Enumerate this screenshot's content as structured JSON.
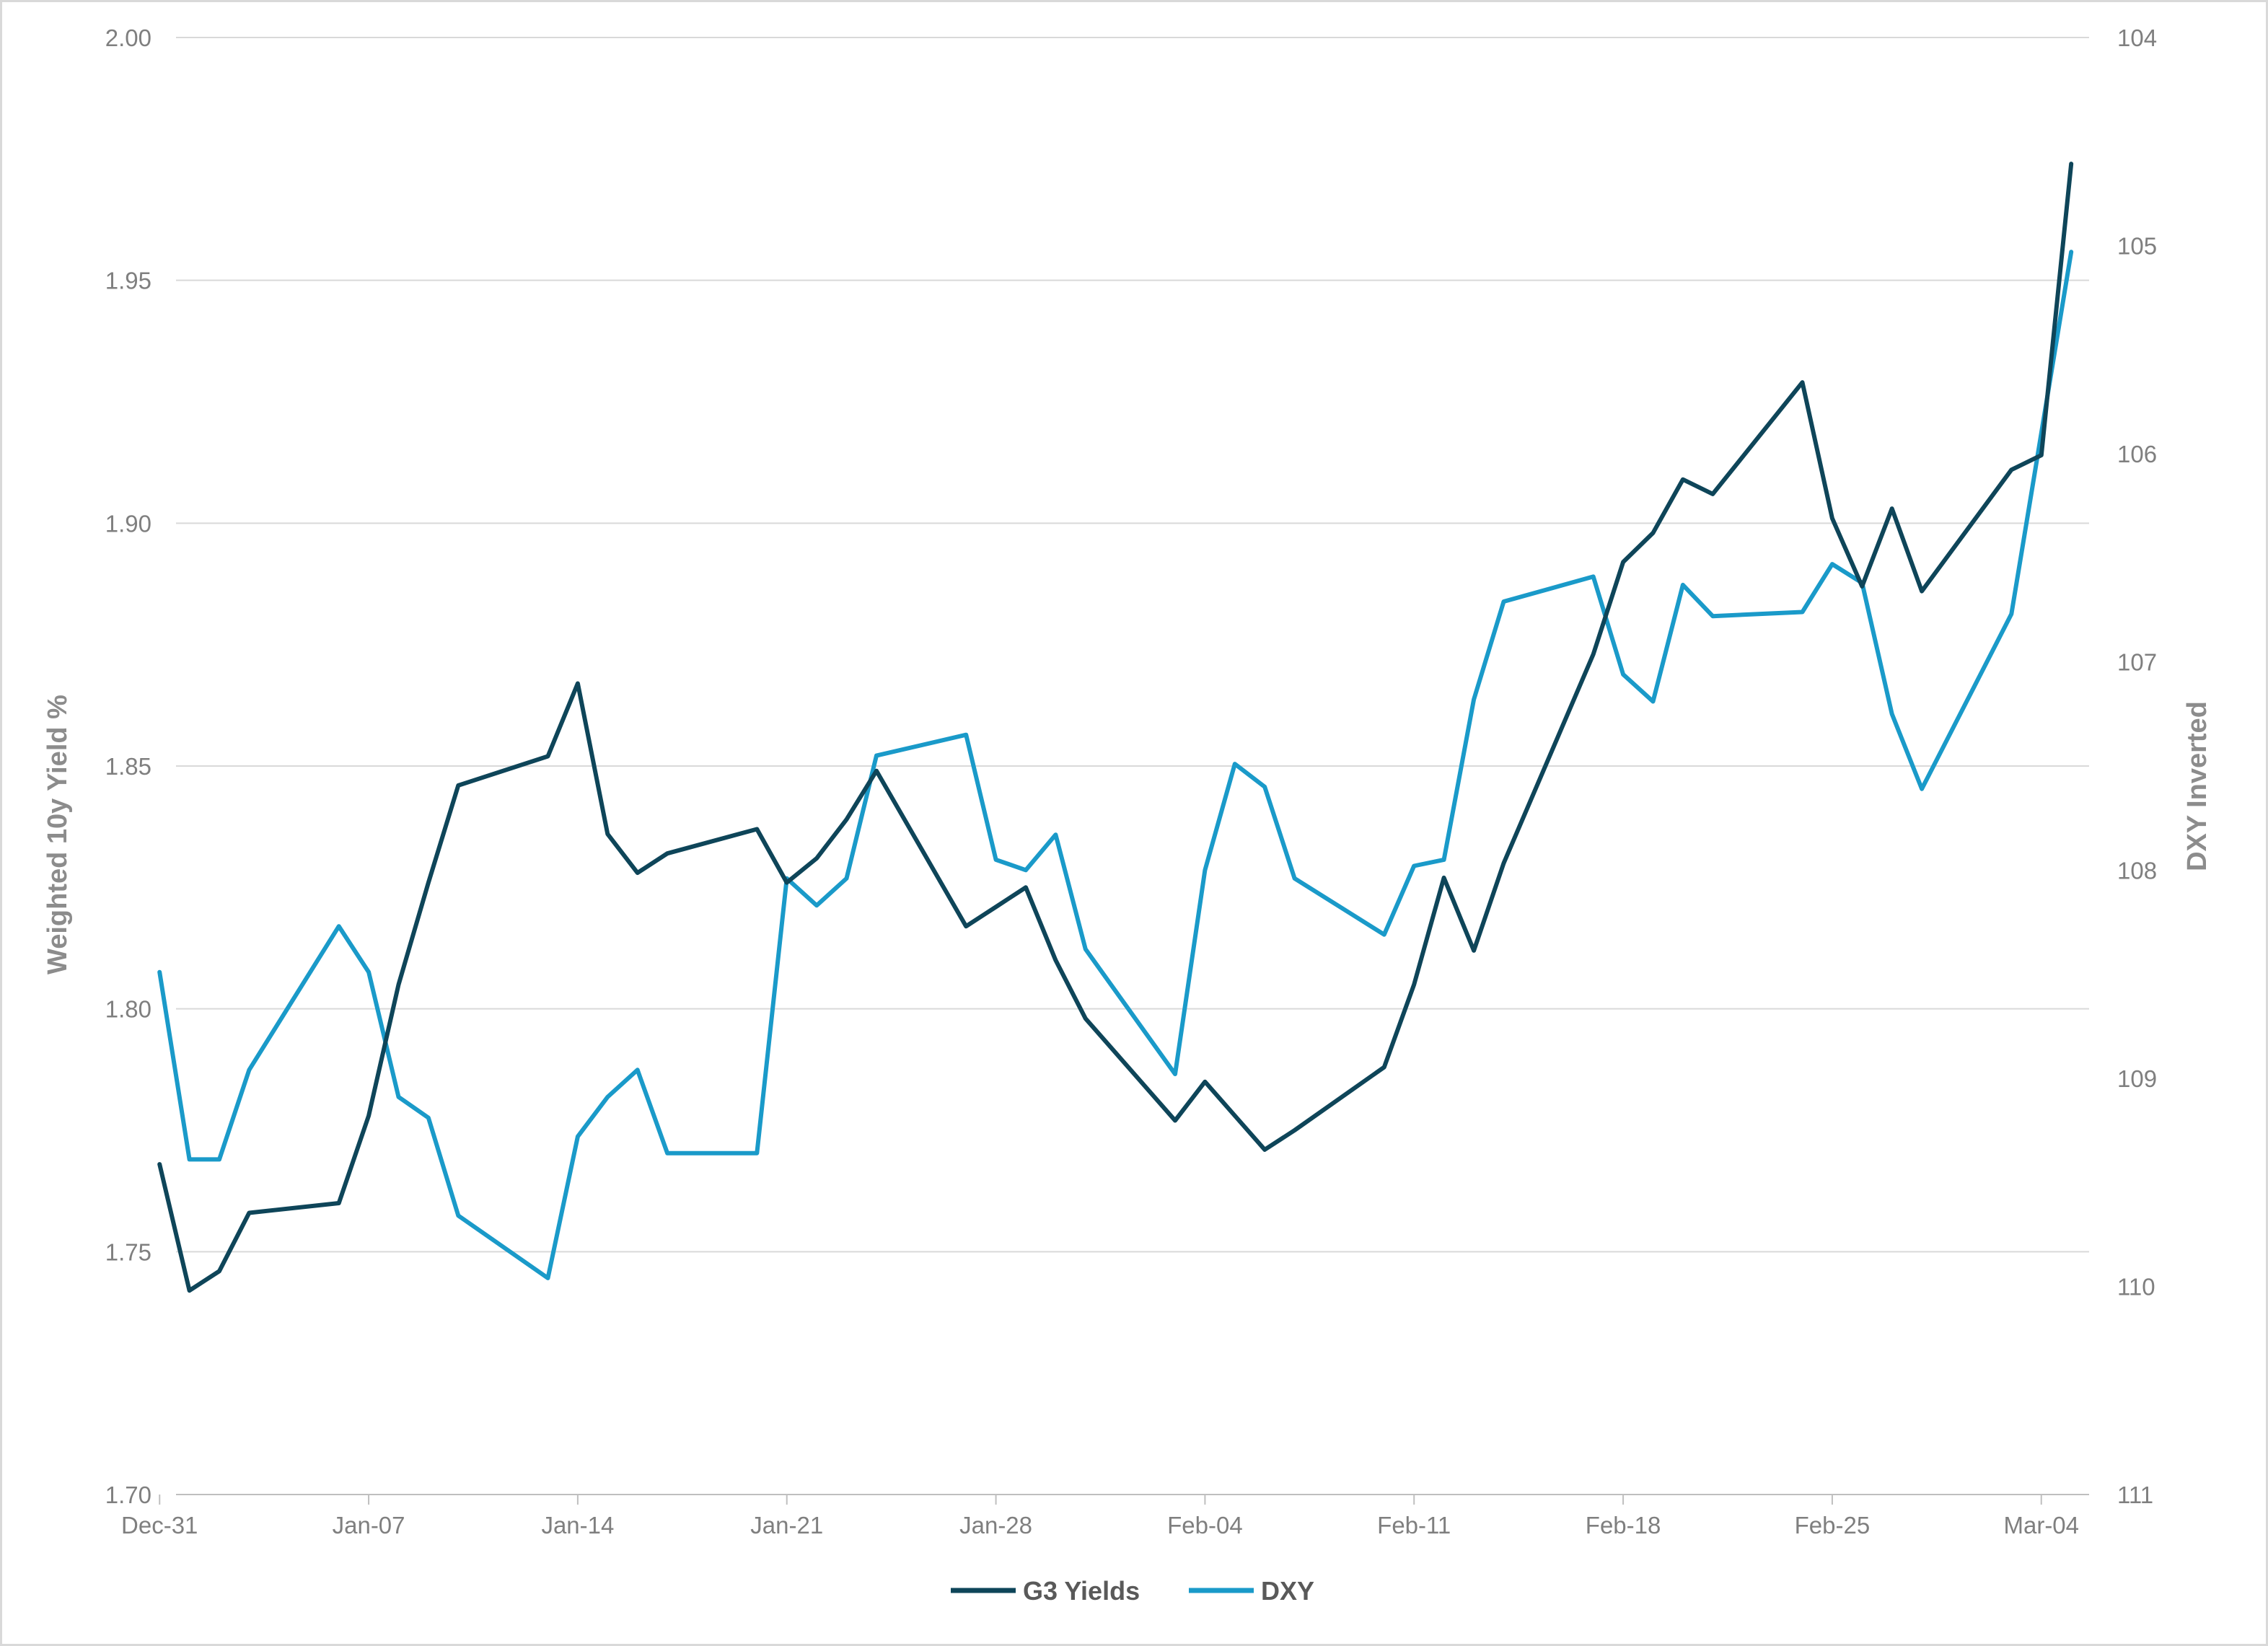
{
  "chart_data": {
    "type": "line",
    "title": "",
    "ylabel_left": "Weighted 10y Yield %",
    "ylabel_right": "DXY Inverted",
    "x_ticks": [
      "Dec-31",
      "Jan-07",
      "Jan-14",
      "Jan-21",
      "Jan-28",
      "Feb-04",
      "Feb-11",
      "Feb-18",
      "Feb-25",
      "Mar-04"
    ],
    "y_left": {
      "min": 1.7,
      "max": 2.0,
      "ticks": [
        "1.70",
        "1.75",
        "1.80",
        "1.85",
        "1.90",
        "1.95",
        "2.00"
      ]
    },
    "y_right": {
      "min": 104,
      "max": 111,
      "inverted": true,
      "ticks": [
        "104",
        "105",
        "106",
        "107",
        "108",
        "109",
        "110",
        "111"
      ]
    },
    "grid": "horizontal",
    "legend_position": "bottom-center",
    "series": [
      {
        "name": "G3 Yields",
        "axis": "left",
        "color": "#0e4559",
        "x": [
          "2024-12-31",
          "2025-01-01",
          "2025-01-02",
          "2025-01-03",
          "2025-01-06",
          "2025-01-07",
          "2025-01-08",
          "2025-01-09",
          "2025-01-10",
          "2025-01-13",
          "2025-01-14",
          "2025-01-15",
          "2025-01-16",
          "2025-01-17",
          "2025-01-20",
          "2025-01-21",
          "2025-01-22",
          "2025-01-23",
          "2025-01-24",
          "2025-01-27",
          "2025-01-28",
          "2025-01-29",
          "2025-01-30",
          "2025-01-31",
          "2025-02-03",
          "2025-02-04",
          "2025-02-05",
          "2025-02-06",
          "2025-02-07",
          "2025-02-10",
          "2025-02-11",
          "2025-02-12",
          "2025-02-13",
          "2025-02-14",
          "2025-02-17",
          "2025-02-18",
          "2025-02-19",
          "2025-02-20",
          "2025-02-21",
          "2025-02-24",
          "2025-02-25",
          "2025-02-26",
          "2025-02-27",
          "2025-02-28",
          "2025-03-03",
          "2025-03-04",
          "2025-03-05"
        ],
        "values": [
          1.768,
          1.742,
          1.746,
          1.758,
          1.76,
          1.778,
          1.805,
          1.826,
          1.846,
          1.852,
          1.867,
          1.836,
          1.828,
          1.832,
          1.837,
          1.826,
          1.831,
          1.839,
          1.849,
          1.817,
          1.821,
          1.825,
          1.81,
          1.798,
          1.777,
          1.785,
          1.778,
          1.771,
          1.775,
          1.788,
          1.805,
          1.827,
          1.812,
          1.83,
          1.873,
          1.892,
          1.898,
          1.909,
          1.906,
          1.929,
          1.901,
          1.887,
          1.903,
          1.886,
          1.911,
          1.914,
          1.974
        ]
      },
      {
        "name": "DXY",
        "axis": "right",
        "color": "#1a9ac9",
        "x": [
          "2024-12-31",
          "2025-01-01",
          "2025-01-02",
          "2025-01-03",
          "2025-01-06",
          "2025-01-07",
          "2025-01-08",
          "2025-01-09",
          "2025-01-10",
          "2025-01-13",
          "2025-01-14",
          "2025-01-15",
          "2025-01-16",
          "2025-01-17",
          "2025-01-20",
          "2025-01-21",
          "2025-01-22",
          "2025-01-23",
          "2025-01-24",
          "2025-01-27",
          "2025-01-28",
          "2025-01-29",
          "2025-01-30",
          "2025-01-31",
          "2025-02-03",
          "2025-02-04",
          "2025-02-05",
          "2025-02-06",
          "2025-02-07",
          "2025-02-10",
          "2025-02-11",
          "2025-02-12",
          "2025-02-13",
          "2025-02-14",
          "2025-02-17",
          "2025-02-18",
          "2025-02-19",
          "2025-02-20",
          "2025-02-21",
          "2025-02-24",
          "2025-02-25",
          "2025-02-26",
          "2025-02-27",
          "2025-02-28",
          "2025-03-03",
          "2025-03-04",
          "2025-03-05"
        ],
        "values": [
          108.49,
          109.39,
          109.39,
          108.96,
          108.27,
          108.49,
          109.09,
          109.19,
          109.66,
          109.96,
          109.28,
          109.09,
          108.96,
          109.36,
          109.36,
          108.04,
          108.17,
          108.04,
          107.45,
          107.35,
          107.95,
          108.0,
          107.83,
          108.38,
          108.98,
          108.0,
          107.49,
          107.6,
          108.04,
          108.31,
          107.98,
          107.95,
          107.18,
          106.71,
          106.59,
          107.06,
          107.19,
          106.63,
          106.78,
          106.76,
          106.53,
          106.62,
          107.25,
          107.61,
          106.77,
          105.9,
          105.03
        ]
      }
    ]
  }
}
